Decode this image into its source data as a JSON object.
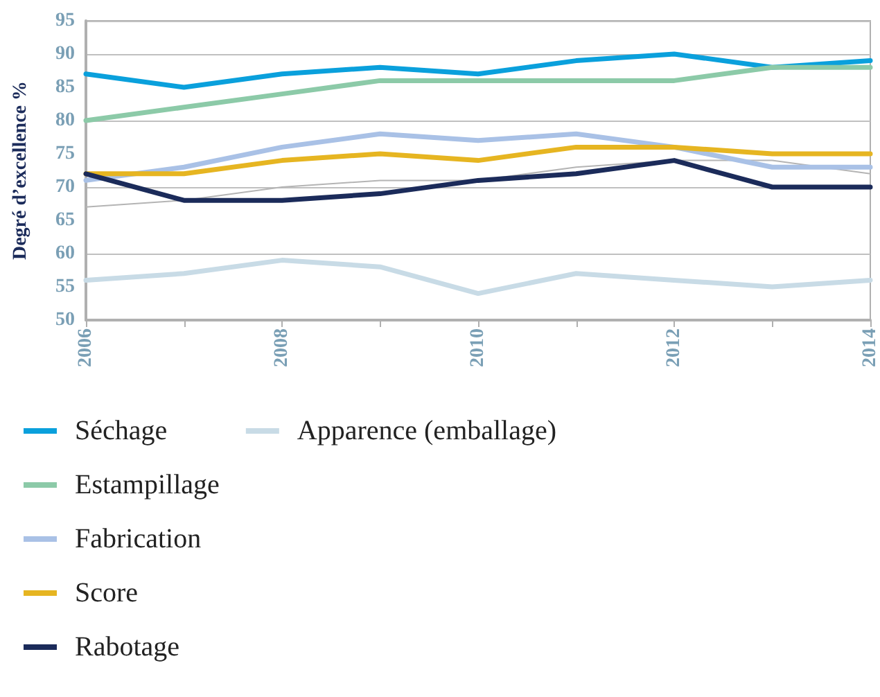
{
  "chart_data": {
    "type": "line",
    "ylabel": "Degré d’excellence %",
    "x": [
      2006,
      2007,
      2008,
      2009,
      2010,
      2011,
      2012,
      2013,
      2014
    ],
    "xlim": [
      2006,
      2014
    ],
    "xticks": [
      2006,
      {
        "value": 2007,
        "label": null
      },
      2008,
      {
        "value": 2009,
        "label": null
      },
      2010,
      {
        "value": 2011,
        "label": null
      },
      2012,
      {
        "value": 2013,
        "label": null
      },
      2014
    ],
    "ylim": [
      50,
      95
    ],
    "yticks": [
      50,
      55,
      60,
      65,
      70,
      75,
      80,
      85,
      90,
      95
    ],
    "grid": "y",
    "legend": "bottom",
    "marker": "none",
    "line_style": "solid",
    "series": [
      {
        "name": "Séchage",
        "color": "#0aa0dc",
        "values": [
          87,
          85,
          87,
          88,
          87,
          89,
          90,
          88,
          89
        ]
      },
      {
        "name": "Estampillage",
        "color": "#8ccaa8",
        "values": [
          80,
          82,
          84,
          86,
          86,
          86,
          86,
          88,
          88
        ]
      },
      {
        "name": "Fabrication",
        "color": "#a9c1e6",
        "values": [
          71,
          73,
          76,
          78,
          77,
          78,
          76,
          73,
          73
        ]
      },
      {
        "name": "Score",
        "color": "#e6b521",
        "values": [
          72,
          72,
          74,
          75,
          74,
          76,
          76,
          75,
          75
        ]
      },
      {
        "name": "Rabotage",
        "color": "#1b2b5a",
        "values": [
          72,
          68,
          68,
          69,
          71,
          72,
          74,
          70,
          70
        ]
      },
      {
        "name": "Apparence (emballage)",
        "color": "#c8dbe6",
        "values": [
          56,
          57,
          59,
          58,
          54,
          57,
          56,
          55,
          56
        ]
      },
      {
        "color": "#b4b4b4",
        "values": [
          67,
          68,
          70,
          71,
          71,
          73,
          74,
          74,
          72
        ]
      }
    ]
  }
}
